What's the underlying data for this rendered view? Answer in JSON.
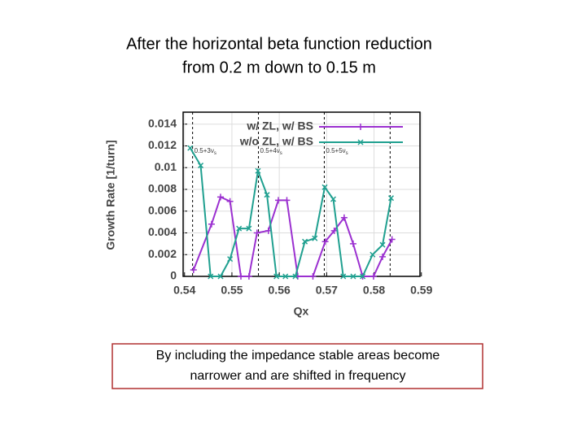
{
  "slide_title": [
    "After the horizontal beta function reduction",
    "from 0.2 m down to 0.15 m"
  ],
  "caption": [
    "By including the impedance stable areas become",
    "narrower and are shifted in frequency"
  ],
  "chart_data": {
    "type": "line",
    "xlabel": "Qx",
    "ylabel": "Growth Rate [1/turn]",
    "xlim": [
      0.5397,
      0.5897
    ],
    "xticks": [
      0.54,
      0.55,
      0.56,
      0.57,
      0.58,
      0.59
    ],
    "ylim": [
      0,
      0.0151
    ],
    "yticks": [
      0,
      0.002,
      0.004,
      0.006,
      0.008,
      0.01,
      0.012,
      0.014
    ],
    "grid": true,
    "legend": "upper right",
    "vlines": [
      {
        "value": 0.5417,
        "label": "0.5+3ν",
        "sub": "s"
      },
      {
        "value": 0.5556,
        "label": "0.5+4ν",
        "sub": "s"
      },
      {
        "value": 0.5695,
        "label": "0.5+5ν",
        "sub": "s"
      },
      {
        "value": 0.5834
      }
    ],
    "series": [
      {
        "name": "w/ ZL, w/ BS",
        "color": "#9b30d0",
        "marker": "plus",
        "x": [
          0.5419,
          0.5457,
          0.5476,
          0.5496,
          0.5519,
          0.5536,
          0.5553,
          0.5577,
          0.5598,
          0.5616,
          0.5639,
          0.5671,
          0.5697,
          0.5716,
          0.5737,
          0.5756,
          0.5776,
          0.5799,
          0.5818,
          0.5838
        ],
        "values": [
          0.0006,
          0.0048,
          0.0073,
          0.0069,
          0,
          0,
          0.004,
          0.0042,
          0.007,
          0.007,
          0,
          0,
          0.0032,
          0.0042,
          0.0054,
          0.003,
          0,
          0,
          0.0018,
          0.0034
        ]
      },
      {
        "name": "w/o ZL, w/ BS",
        "color": "#20a090",
        "marker": "cross",
        "x": [
          0.5412,
          0.5434,
          0.5455,
          0.5476,
          0.5496,
          0.5515,
          0.5536,
          0.5555,
          0.5574,
          0.5594,
          0.5613,
          0.5634,
          0.5654,
          0.5675,
          0.5696,
          0.5714,
          0.5735,
          0.5756,
          0.5776,
          0.5797,
          0.5818,
          0.5836
        ],
        "values": [
          0.0118,
          0.0102,
          0,
          0,
          0.0016,
          0.0044,
          0.0044,
          0.0097,
          0.0075,
          0,
          0,
          0,
          0.0032,
          0.0035,
          0.0082,
          0.0071,
          0,
          0,
          0,
          0.002,
          0.0029,
          0.0072
        ]
      }
    ]
  }
}
